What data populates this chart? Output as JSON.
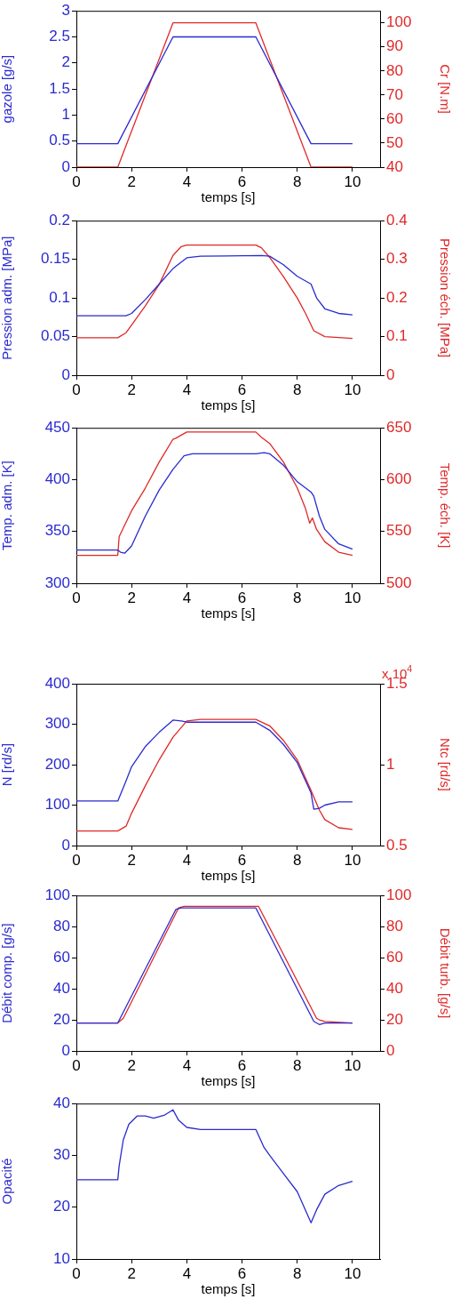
{
  "chart_data": [
    {
      "type": "line",
      "xlabel": "temps [s]",
      "ylabel": "gazole [g/s]",
      "y2label": "Cr [N.m]",
      "xlim": [
        0,
        11
      ],
      "xticks": [
        0,
        2,
        4,
        6,
        8,
        10
      ],
      "ylim": [
        0,
        3
      ],
      "yticks": [
        0,
        0.5,
        1,
        1.5,
        2,
        2.5,
        3
      ],
      "y2lim": [
        40,
        105
      ],
      "y2ticks": [
        40,
        50,
        60,
        70,
        80,
        90,
        100
      ],
      "series": [
        {
          "color": "#2a2ad0",
          "x": [
            0,
            1.5,
            3.5,
            6.5,
            8.5,
            10
          ],
          "values": [
            0.45,
            0.45,
            2.5,
            2.5,
            0.45,
            0.45
          ]
        },
        {
          "color": "#e02828",
          "axis": "y2",
          "x": [
            0,
            1.5,
            3.5,
            6.5,
            8.5,
            10
          ],
          "values": [
            40,
            40,
            100,
            100,
            40,
            40
          ]
        }
      ]
    },
    {
      "type": "line",
      "xlabel": "temps [s]",
      "ylabel": "Pression adm. [MPa]",
      "y2label": "Pression éch. [MPa]",
      "xlim": [
        0,
        11
      ],
      "xticks": [
        0,
        2,
        4,
        6,
        8,
        10
      ],
      "ylim": [
        0,
        0.2
      ],
      "yticks": [
        0,
        0.05,
        0.1,
        0.15,
        0.2
      ],
      "y2lim": [
        0,
        0.4
      ],
      "y2ticks": [
        0,
        0.1,
        0.2,
        0.3,
        0.4
      ],
      "series": [
        {
          "color": "#2a2ad0",
          "x": [
            0,
            1.8,
            2,
            2.5,
            3,
            3.5,
            4,
            4.5,
            6.7,
            7,
            7.5,
            8,
            8.5,
            8.7,
            9,
            9.5,
            10
          ],
          "values": [
            0.077,
            0.077,
            0.08,
            0.098,
            0.118,
            0.138,
            0.152,
            0.154,
            0.155,
            0.154,
            0.143,
            0.128,
            0.118,
            0.1,
            0.086,
            0.08,
            0.078
          ]
        },
        {
          "color": "#e02828",
          "axis": "y2",
          "x": [
            0,
            1.5,
            1.8,
            2,
            2.5,
            3,
            3.5,
            3.8,
            4,
            6.5,
            6.7,
            7,
            7.5,
            8,
            8.3,
            8.6,
            9,
            10
          ],
          "values": [
            0.097,
            0.097,
            0.11,
            0.13,
            0.18,
            0.235,
            0.31,
            0.333,
            0.337,
            0.337,
            0.33,
            0.305,
            0.255,
            0.2,
            0.16,
            0.115,
            0.1,
            0.095
          ]
        }
      ]
    },
    {
      "type": "line",
      "xlabel": "temps [s]",
      "ylabel": "Temp. adm. [K]",
      "y2label": "Temp. éch. [K]",
      "xlim": [
        0,
        11
      ],
      "xticks": [
        0,
        2,
        4,
        6,
        8,
        10
      ],
      "ylim": [
        300,
        450
      ],
      "yticks": [
        300,
        350,
        400,
        450
      ],
      "y2lim": [
        500,
        650
      ],
      "y2ticks": [
        500,
        550,
        600,
        650
      ],
      "series": [
        {
          "color": "#2a2ad0",
          "x": [
            0,
            1.5,
            1.6,
            1.75,
            2,
            2.5,
            3,
            3.5,
            3.9,
            4.2,
            6.5,
            6.8,
            7,
            7.5,
            8,
            8.5,
            8.6,
            8.8,
            9,
            9.5,
            10
          ],
          "values": [
            332,
            332,
            330,
            329,
            336,
            365,
            390,
            410,
            423,
            425,
            425,
            426,
            425,
            414,
            398,
            388,
            384,
            365,
            352,
            338,
            333
          ]
        },
        {
          "color": "#e02828",
          "axis": "y2",
          "x": [
            0,
            1.5,
            1.55,
            2,
            2.5,
            3,
            3.5,
            3.6,
            4,
            6.5,
            6.7,
            7,
            7.5,
            8,
            8.3,
            8.45,
            8.55,
            8.7,
            9,
            9.5,
            10
          ],
          "values": [
            527,
            527,
            545,
            570,
            592,
            617,
            639,
            640,
            646,
            646,
            641,
            635,
            617,
            592,
            572,
            558,
            563,
            552,
            540,
            530,
            527
          ]
        }
      ]
    },
    {
      "type": "line",
      "xlabel": "temps [s]",
      "ylabel": "N [rd/s]",
      "y2label": "Ntc [rd/s]",
      "annotations": [
        "x 10$^{4}$"
      ],
      "xlim": [
        0,
        11
      ],
      "xticks": [
        0,
        2,
        4,
        6,
        8,
        10
      ],
      "ylim": [
        0,
        400
      ],
      "yticks": [
        0,
        100,
        200,
        300,
        400
      ],
      "y2lim": [
        0.5,
        1.5
      ],
      "y2ticks": [
        0.5,
        1,
        1.5
      ],
      "series": [
        {
          "color": "#2a2ad0",
          "x": [
            0,
            1.5,
            1.8,
            2,
            2.5,
            3,
            3.5,
            3.8,
            4,
            6.5,
            7,
            7.5,
            8,
            8.5,
            8.6,
            8.8,
            9,
            9.5,
            10
          ],
          "values": [
            110,
            110,
            160,
            195,
            245,
            280,
            310,
            308,
            305,
            305,
            285,
            250,
            205,
            130,
            90,
            92,
            100,
            108,
            108
          ]
        },
        {
          "color": "#e02828",
          "axis": "y2",
          "x": [
            0,
            1.5,
            1.8,
            2,
            2.5,
            3,
            3.5,
            4,
            4.5,
            6.5,
            7,
            7.5,
            8,
            8.5,
            8.8,
            9,
            9.5,
            10
          ],
          "values": [
            0.59,
            0.59,
            0.62,
            0.7,
            0.87,
            1.03,
            1.17,
            1.27,
            1.28,
            1.28,
            1.24,
            1.15,
            1.03,
            0.84,
            0.72,
            0.66,
            0.61,
            0.6
          ]
        }
      ]
    },
    {
      "type": "line",
      "xlabel": "temps [s]",
      "ylabel": "Débit comp. [g/s]",
      "y2label": "Débit turb. [g/s]",
      "xlim": [
        0,
        11
      ],
      "xticks": [
        0,
        2,
        4,
        6,
        8,
        10
      ],
      "ylim": [
        0,
        100
      ],
      "yticks": [
        0,
        20,
        40,
        60,
        80,
        100
      ],
      "y2lim": [
        0,
        100
      ],
      "y2ticks": [
        0,
        20,
        40,
        60,
        80,
        100
      ],
      "series": [
        {
          "color": "#2a2ad0",
          "x": [
            0,
            1.5,
            3.6,
            3.8,
            6.5,
            8.6,
            8.8,
            9,
            10
          ],
          "values": [
            18,
            18,
            91,
            92,
            92,
            19,
            17,
            18,
            18
          ]
        },
        {
          "color": "#e02828",
          "axis": "y2",
          "x": [
            0,
            1.5,
            1.7,
            3.7,
            3.9,
            6.6,
            8.7,
            8.8,
            9,
            10
          ],
          "values": [
            18,
            18,
            21,
            92,
            93,
            93,
            21,
            20,
            19,
            18
          ]
        }
      ]
    },
    {
      "type": "line",
      "xlabel": "temps [s]",
      "ylabel": "Opacité",
      "xlim": [
        0,
        11
      ],
      "xticks": [
        0,
        2,
        4,
        6,
        8,
        10
      ],
      "ylim": [
        10,
        40
      ],
      "yticks": [
        10,
        20,
        30,
        40
      ],
      "series": [
        {
          "color": "#2a2ad0",
          "x": [
            0,
            1.5,
            1.55,
            1.7,
            1.9,
            2.2,
            2.5,
            2.8,
            3.2,
            3.5,
            3.7,
            4,
            4.5,
            6.5,
            6.8,
            7,
            7.5,
            8,
            8.5,
            8.7,
            9,
            9.5,
            10
          ],
          "values": [
            25.3,
            25.3,
            28,
            33,
            36,
            37.6,
            37.6,
            37.2,
            37.8,
            38.8,
            36.8,
            35.4,
            35,
            35,
            31.5,
            30,
            26.5,
            23,
            17,
            19.5,
            22.5,
            24.2,
            25
          ]
        }
      ]
    }
  ]
}
